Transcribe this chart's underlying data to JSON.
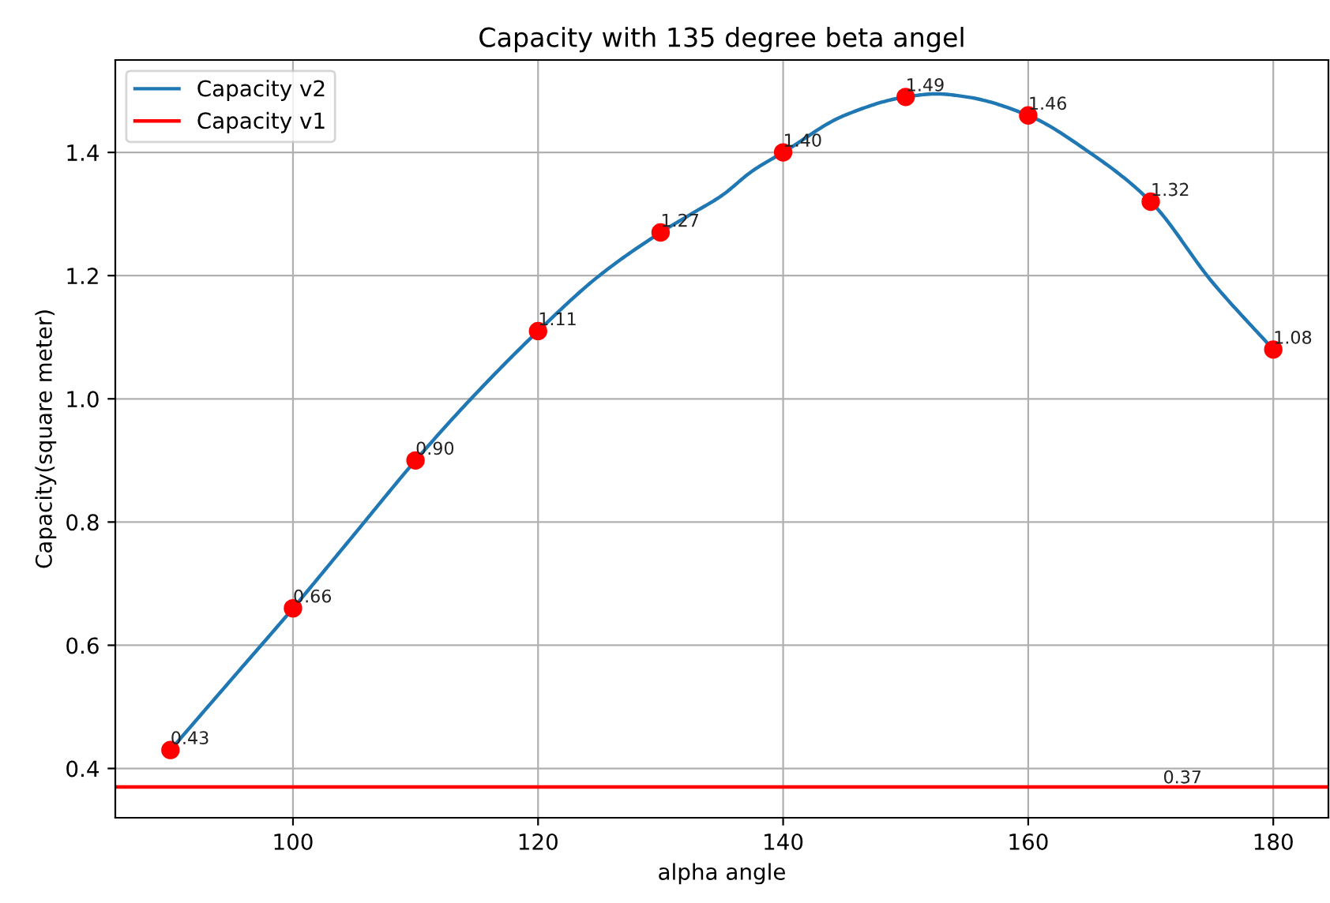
{
  "chart_data": {
    "type": "line",
    "title": "Capacity with 135 degree beta angel",
    "xlabel": "alpha angle",
    "ylabel": "Capacity(square meter)",
    "series": [
      {
        "name": "Capacity v2",
        "color": "#1f77b4",
        "x": [
          90,
          95,
          100,
          105,
          110,
          115,
          120,
          125,
          130,
          132.5,
          135,
          137.5,
          140,
          145,
          150,
          152.5,
          155,
          160,
          165,
          170,
          175,
          180
        ],
        "values": [
          0.43,
          0.545,
          0.66,
          0.78,
          0.9,
          1.01,
          1.11,
          1.2,
          1.27,
          1.3,
          1.33,
          1.37,
          1.4,
          1.46,
          1.49,
          1.495,
          1.49,
          1.46,
          1.4,
          1.32,
          1.19,
          1.08
        ]
      },
      {
        "name": "Capacity v1",
        "color": "#ff0000",
        "x": [
          85.5,
          184.5
        ],
        "values": [
          0.37,
          0.37
        ]
      },
      {
        "type": "scatter",
        "color": "#ff0000",
        "marker": "circle",
        "x": [
          90,
          100,
          110,
          120,
          130,
          140,
          150,
          160,
          170,
          180
        ],
        "values": [
          0.43,
          0.66,
          0.9,
          1.11,
          1.27,
          1.4,
          1.49,
          1.46,
          1.32,
          1.08
        ],
        "value_labels": [
          "0.43",
          "0.66",
          "0.90",
          "1.11",
          "1.27",
          "1.40",
          "1.49",
          "1.46",
          "1.32",
          "1.08"
        ]
      }
    ],
    "annotations": [
      {
        "text": "0.37",
        "x": 171,
        "y": 0.37
      }
    ],
    "xlim": [
      85.5,
      184.5
    ],
    "ylim": [
      0.32,
      1.55
    ],
    "xticks": [
      100,
      120,
      140,
      160,
      180
    ],
    "yticks": [
      {
        "value": 0.4,
        "label": "0.4"
      },
      {
        "value": 0.6,
        "label": "0.6"
      },
      {
        "value": 0.8,
        "label": "0.8"
      },
      {
        "value": 1,
        "label": "1.0"
      },
      {
        "value": 1.2,
        "label": "1.2"
      },
      {
        "value": 1.4,
        "label": "1.4"
      }
    ],
    "grid": true,
    "legend": "top left"
  }
}
